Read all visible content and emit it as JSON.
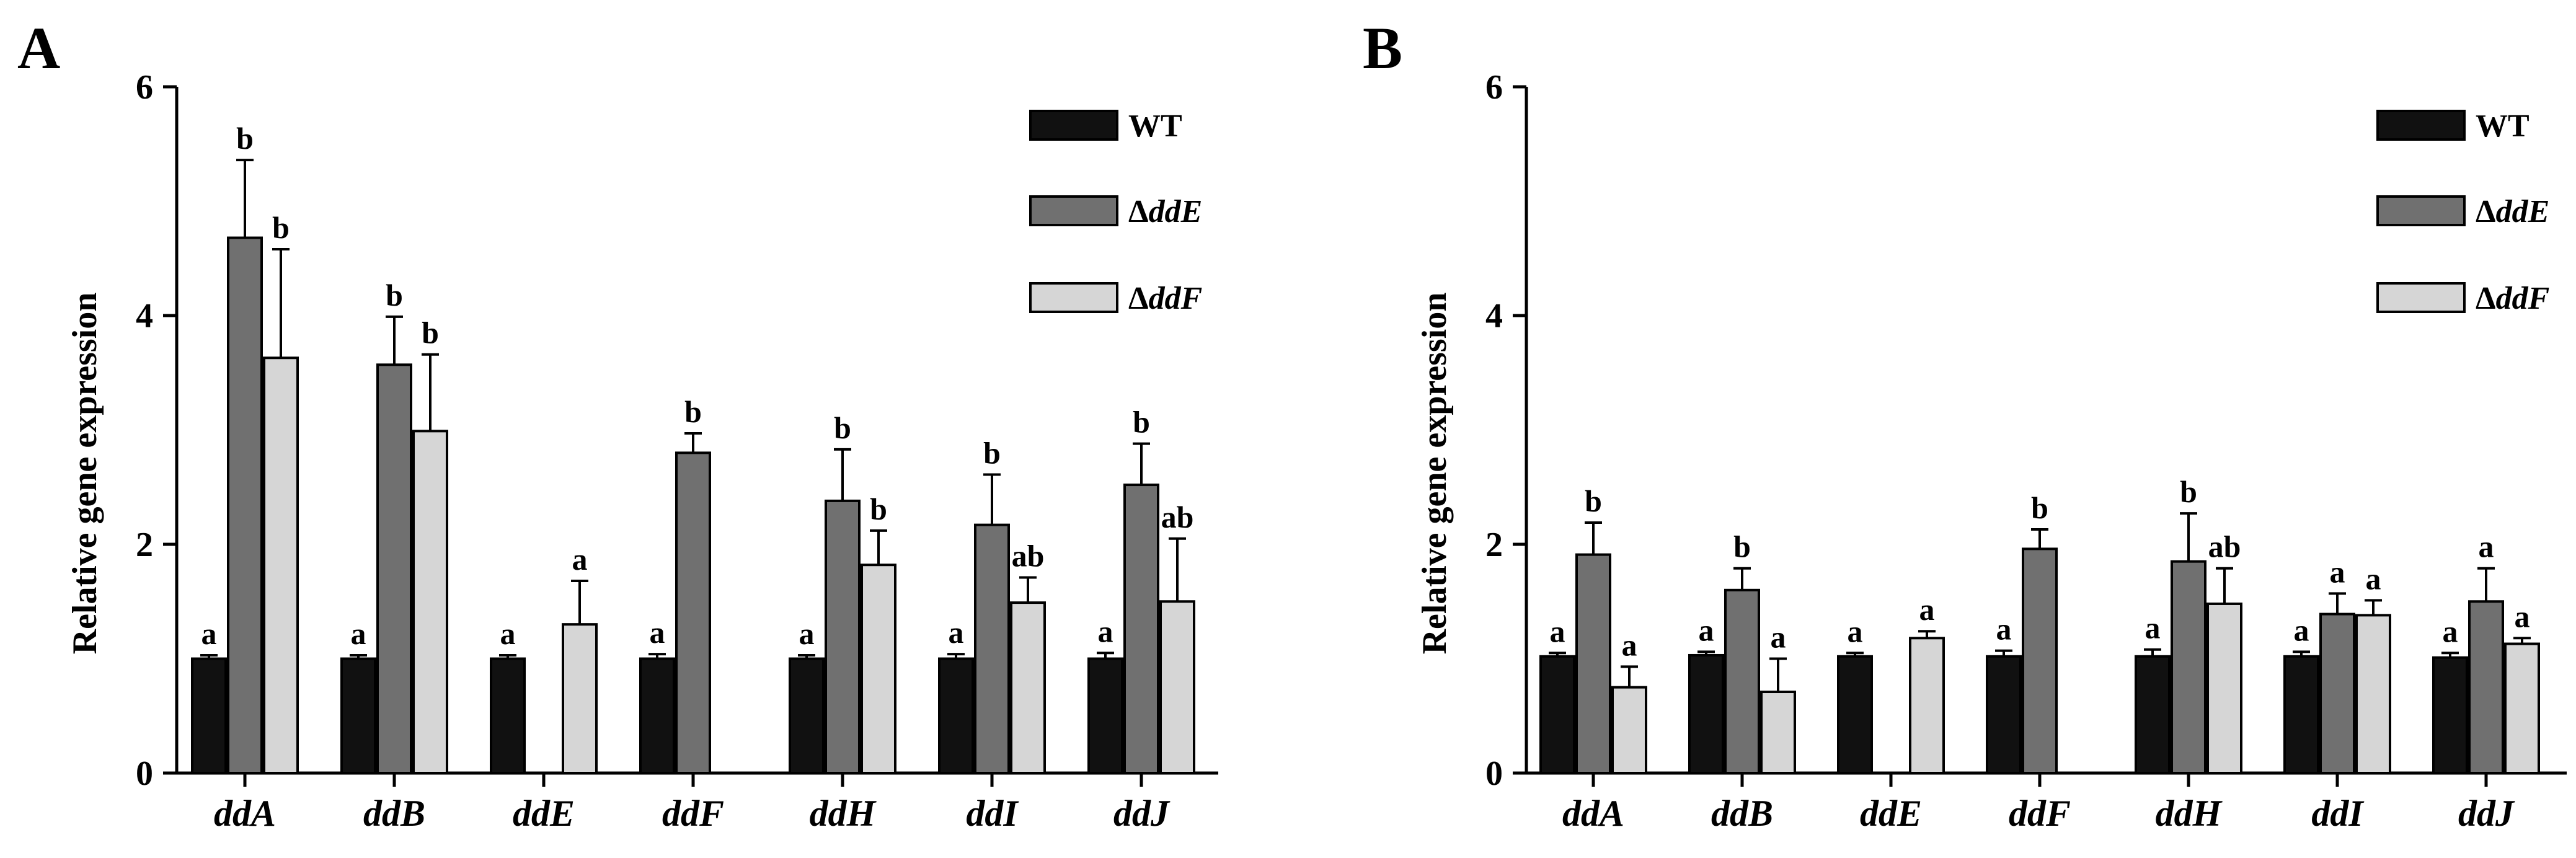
{
  "chart_data": [
    {
      "type": "bar",
      "panel": "A",
      "ylabel": "Relative gene expression",
      "ylim": [
        0,
        6
      ],
      "yticks": [
        "0",
        "2",
        "4",
        "6"
      ],
      "categories": [
        "ddA",
        "ddB",
        "ddE",
        "ddF",
        "ddH",
        "ddI",
        "ddJ"
      ],
      "series": [
        {
          "name": "WT",
          "prefix": "",
          "italic": "",
          "values": [
            1.0,
            1.0,
            1.0,
            1.0,
            1.0,
            1.0,
            1.0
          ],
          "errors": [
            0.03,
            0.03,
            0.03,
            0.04,
            0.03,
            0.04,
            0.05
          ],
          "labels": [
            "a",
            "a",
            "a",
            "a",
            "a",
            "a",
            "a"
          ]
        },
        {
          "name": "ΔddE",
          "prefix": "Δ",
          "italic": "ddE",
          "values": [
            4.68,
            3.57,
            null,
            2.8,
            2.38,
            2.17,
            2.52
          ],
          "errors": [
            0.68,
            0.42,
            null,
            0.17,
            0.45,
            0.44,
            0.36
          ],
          "labels": [
            "b",
            "b",
            "",
            "b",
            "b",
            "b",
            "b"
          ]
        },
        {
          "name": "ΔddF",
          "prefix": "Δ",
          "italic": "ddF",
          "values": [
            3.63,
            2.99,
            1.3,
            null,
            1.82,
            1.49,
            1.5
          ],
          "errors": [
            0.95,
            0.67,
            0.38,
            null,
            0.3,
            0.22,
            0.55
          ],
          "labels": [
            "b",
            "b",
            "a",
            "",
            "b",
            "ab",
            "ab"
          ]
        }
      ]
    },
    {
      "type": "bar",
      "panel": "B",
      "ylabel": "Relative gene expression",
      "ylim": [
        0,
        6
      ],
      "yticks": [
        "0",
        "2",
        "4",
        "6"
      ],
      "categories": [
        "ddA",
        "ddB",
        "ddE",
        "ddF",
        "ddH",
        "ddI",
        "ddJ"
      ],
      "series": [
        {
          "name": "WT",
          "prefix": "",
          "italic": "",
          "values": [
            1.02,
            1.03,
            1.02,
            1.02,
            1.02,
            1.02,
            1.01
          ],
          "errors": [
            0.03,
            0.03,
            0.03,
            0.05,
            0.06,
            0.04,
            0.04
          ],
          "labels": [
            "a",
            "a",
            "a",
            "a",
            "a",
            "a",
            "a"
          ]
        },
        {
          "name": "ΔddE",
          "prefix": "Δ",
          "italic": "ddE",
          "values": [
            1.91,
            1.6,
            null,
            1.96,
            1.85,
            1.39,
            1.5
          ],
          "errors": [
            0.28,
            0.19,
            null,
            0.17,
            0.42,
            0.18,
            0.29
          ],
          "labels": [
            "b",
            "b",
            "",
            "b",
            "b",
            "a",
            "a"
          ]
        },
        {
          "name": "ΔddF",
          "prefix": "Δ",
          "italic": "ddF",
          "values": [
            0.75,
            0.71,
            1.18,
            null,
            1.48,
            1.38,
            1.13
          ],
          "errors": [
            0.18,
            0.29,
            0.06,
            null,
            0.31,
            0.13,
            0.05
          ],
          "labels": [
            "a",
            "a",
            "a",
            "",
            "ab",
            "a",
            "a"
          ]
        }
      ]
    }
  ],
  "colors": {
    "WT": "#111111",
    "ddE": "#707070",
    "ddF": "#d6d6d6",
    "axis": "#000000"
  }
}
